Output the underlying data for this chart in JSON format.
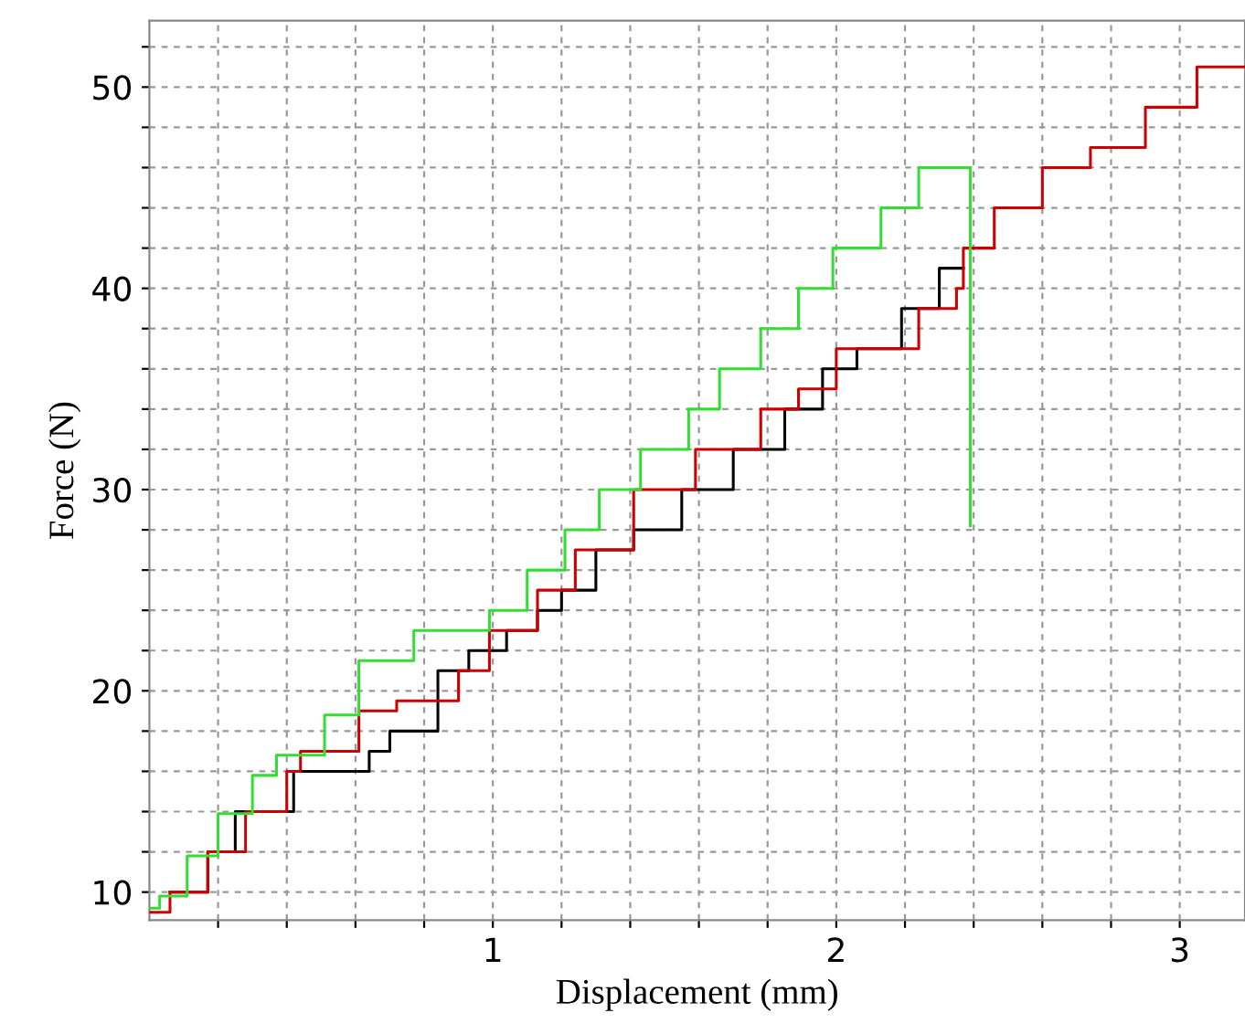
{
  "chart_data": {
    "type": "step",
    "xlabel": "Displacement (mm)",
    "ylabel": "Force (N)",
    "xlim": [
      0,
      3.19
    ],
    "ylim": [
      8.6,
      53.3
    ],
    "xticks": [
      {
        "value": 0.2,
        "label": null
      },
      {
        "value": 0.4,
        "label": null
      },
      {
        "value": 0.6,
        "label": null
      },
      {
        "value": 0.8,
        "label": null
      },
      1,
      {
        "value": 1.2,
        "label": null
      },
      {
        "value": 1.4,
        "label": null
      },
      {
        "value": 1.6,
        "label": null
      },
      {
        "value": 1.8,
        "label": null
      },
      2,
      {
        "value": 2.2,
        "label": null
      },
      {
        "value": 2.4,
        "label": null
      },
      {
        "value": 2.6,
        "label": null
      },
      {
        "value": 2.8,
        "label": null
      },
      3
    ],
    "yticks": [
      10,
      {
        "value": 12,
        "label": null
      },
      {
        "value": 14,
        "label": null
      },
      {
        "value": 16,
        "label": null
      },
      {
        "value": 18,
        "label": null
      },
      20,
      {
        "value": 22,
        "label": null
      },
      {
        "value": 24,
        "label": null
      },
      {
        "value": 26,
        "label": null
      },
      {
        "value": 28,
        "label": null
      },
      30,
      {
        "value": 32,
        "label": null
      },
      {
        "value": 34,
        "label": null
      },
      {
        "value": 36,
        "label": null
      },
      {
        "value": 38,
        "label": null
      },
      40,
      {
        "value": 42,
        "label": null
      },
      {
        "value": 44,
        "label": null
      },
      {
        "value": 46,
        "label": null
      },
      {
        "value": 48,
        "label": null
      },
      50,
      {
        "value": 52,
        "label": null
      }
    ],
    "grid": true,
    "line_style": "solid",
    "series": [
      {
        "color": "#000000",
        "x": [
          0.06,
          0.17,
          0.25,
          0.42,
          0.64,
          0.7,
          0.84,
          0.93,
          1.04,
          1.13,
          1.2,
          1.3,
          1.41,
          1.55,
          1.7,
          1.85,
          1.96,
          2.06,
          2.19,
          2.3,
          2.37
        ],
        "values": [
          10,
          12,
          14,
          16,
          17,
          18,
          21,
          22,
          23,
          24,
          25,
          27,
          28,
          30,
          32,
          34,
          36,
          37,
          39,
          41,
          41
        ]
      },
      {
        "color": "#cc0000",
        "x": [
          0,
          0.06,
          0.17,
          0.28,
          0.4,
          0.44,
          0.61,
          0.72,
          0.9,
          0.99,
          1.13,
          1.24,
          1.41,
          1.59,
          1.78,
          1.89,
          2.0,
          2.24,
          2.35,
          2.37,
          2.46,
          2.6,
          2.74,
          2.9,
          3.05,
          3.19
        ],
        "values": [
          9,
          10,
          12,
          14,
          16,
          17,
          19,
          19.5,
          21,
          23,
          25,
          27,
          30,
          32,
          34,
          35,
          37,
          39,
          40,
          42,
          44,
          46,
          47,
          49,
          51,
          51
        ]
      },
      {
        "color": "#33dd33",
        "x": [
          0,
          0.03,
          0.11,
          0.2,
          0.3,
          0.37,
          0.51,
          0.61,
          0.77,
          0.99,
          1.1,
          1.21,
          1.31,
          1.43,
          1.57,
          1.66,
          1.78,
          1.89,
          1.99,
          2.13,
          2.24,
          2.39,
          2.39
        ],
        "values": [
          9.2,
          9.8,
          11.8,
          13.9,
          15.8,
          16.8,
          18.8,
          21.5,
          23,
          24,
          26,
          28,
          30,
          32,
          34,
          36,
          38,
          40,
          42,
          44,
          46,
          46,
          28.2
        ]
      }
    ]
  }
}
